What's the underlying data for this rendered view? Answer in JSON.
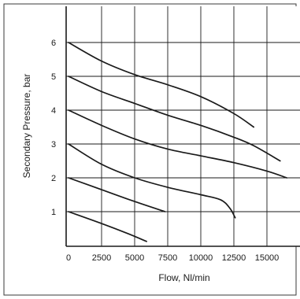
{
  "chart_data": {
    "type": "line",
    "title": "",
    "xlabel": "Flow, Nl/min",
    "ylabel": "Secondary Pressure, bar",
    "xlim": [
      0,
      17500
    ],
    "ylim": [
      0,
      7
    ],
    "grid": true,
    "x_tick_labels": [
      "0",
      "2500",
      "5000",
      "7500",
      "10000",
      "12500",
      "15000"
    ],
    "x_tick_values": [
      0,
      2500,
      5000,
      7500,
      10000,
      12500,
      15000
    ],
    "y_tick_labels": [
      "1",
      "2",
      "3",
      "4",
      "5",
      "6"
    ],
    "y_tick_values": [
      1,
      2,
      3,
      4,
      5,
      6
    ],
    "x_grid_values": [
      2500,
      5000,
      7500,
      10000,
      12500,
      15000
    ],
    "y_grid_values": [
      1,
      2,
      3,
      4,
      5,
      6
    ],
    "series": [
      {
        "values": [
          [
            0,
            1.0
          ],
          [
            2500,
            0.65
          ],
          [
            4500,
            0.35
          ],
          [
            5900,
            0.12
          ]
        ]
      },
      {
        "values": [
          [
            0,
            2.0
          ],
          [
            2500,
            1.65
          ],
          [
            5000,
            1.3
          ],
          [
            7300,
            1.0
          ]
        ]
      },
      {
        "values": [
          [
            0,
            3.0
          ],
          [
            2500,
            2.4
          ],
          [
            5000,
            2.0
          ],
          [
            7500,
            1.72
          ],
          [
            10000,
            1.5
          ],
          [
            11500,
            1.35
          ],
          [
            12200,
            1.1
          ],
          [
            12600,
            0.82
          ]
        ]
      },
      {
        "values": [
          [
            0,
            4.0
          ],
          [
            2500,
            3.55
          ],
          [
            5000,
            3.15
          ],
          [
            7500,
            2.85
          ],
          [
            10000,
            2.65
          ],
          [
            12500,
            2.45
          ],
          [
            15000,
            2.2
          ],
          [
            16500,
            2.0
          ]
        ]
      },
      {
        "values": [
          [
            0,
            5.0
          ],
          [
            2500,
            4.55
          ],
          [
            5000,
            4.2
          ],
          [
            7500,
            3.85
          ],
          [
            10000,
            3.55
          ],
          [
            12500,
            3.2
          ],
          [
            14000,
            2.95
          ],
          [
            16000,
            2.5
          ]
        ]
      },
      {
        "values": [
          [
            0,
            6.0
          ],
          [
            2500,
            5.45
          ],
          [
            5000,
            5.05
          ],
          [
            7500,
            4.75
          ],
          [
            10000,
            4.4
          ],
          [
            12500,
            3.9
          ],
          [
            14000,
            3.5
          ]
        ]
      }
    ]
  }
}
